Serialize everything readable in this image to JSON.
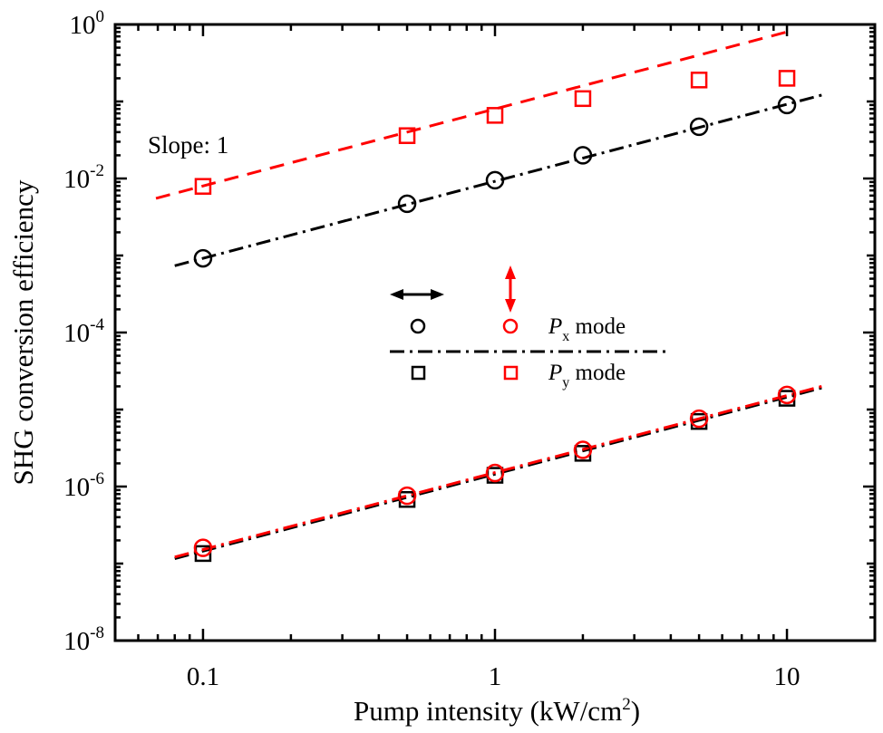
{
  "chart_data": {
    "type": "scatter",
    "title": "",
    "xlabel": "Pump intensity (kW/cm",
    "xlabel_sup": "2",
    "xlabel_end": ")",
    "ylabel": "SHG conversion efficiency",
    "xscale": "log",
    "yscale": "log",
    "xlim": [
      0.05,
      20
    ],
    "ylim": [
      1e-08,
      1
    ],
    "x_ticks": [
      {
        "v": 0.1,
        "label": "0.1"
      },
      {
        "v": 1,
        "label": "1"
      },
      {
        "v": 10,
        "label": "10"
      }
    ],
    "y_ticks": [
      {
        "v": 1,
        "base": "10",
        "exp": "0"
      },
      {
        "v": 0.01,
        "base": "10",
        "exp": "-2"
      },
      {
        "v": 0.0001,
        "base": "10",
        "exp": "-4"
      },
      {
        "v": 1e-06,
        "base": "10",
        "exp": "-6"
      },
      {
        "v": 1e-08,
        "base": "10",
        "exp": "-8"
      }
    ],
    "grid": false,
    "annotation": "Slope: 1",
    "series": [
      {
        "name": "Horizontal polarization, Px mode",
        "marker": "circle",
        "color": "#000000",
        "x": [
          0.1,
          0.5,
          1,
          2,
          5,
          10
        ],
        "y": [
          0.00092,
          0.0047,
          0.0095,
          0.02,
          0.047,
          0.09
        ]
      },
      {
        "name": "Vertical polarization, Py mode",
        "marker": "square",
        "color": "#ff0000",
        "x": [
          0.1,
          0.5,
          1,
          2,
          5,
          10
        ],
        "y": [
          0.0079,
          0.036,
          0.066,
          0.109,
          0.19,
          0.2
        ]
      },
      {
        "name": "Horizontal polarization, Py mode",
        "marker": "square",
        "color": "#000000",
        "x": [
          0.1,
          0.5,
          1,
          2,
          5,
          10
        ],
        "y": [
          1.35e-07,
          6.8e-07,
          1.4e-06,
          2.7e-06,
          7e-06,
          1.4e-05
        ]
      },
      {
        "name": "Vertical polarization, Px mode",
        "marker": "circle",
        "color": "#ff0000",
        "x": [
          0.1,
          0.5,
          1,
          2,
          5,
          10
        ],
        "y": [
          1.6e-07,
          7.6e-07,
          1.5e-06,
          3e-06,
          7.6e-06,
          1.55e-05
        ]
      }
    ],
    "fits": [
      {
        "name": "red-dashed-fit",
        "color": "#ff0000",
        "style": "dash",
        "coef": 0.08,
        "slope": 1,
        "x_range": [
          0.069,
          10
        ]
      },
      {
        "name": "black-dashdot-fit",
        "color": "#000000",
        "style": "dashdot",
        "coef": 0.0092,
        "slope": 1,
        "x_range": [
          0.08,
          13.4
        ]
      },
      {
        "name": "black-lower-dashdot-fit",
        "color": "#000000",
        "style": "dashdot",
        "coef": 1.45e-06,
        "slope": 1,
        "x_range": [
          0.08,
          13.5
        ]
      },
      {
        "name": "red-lower-dashdot-fit",
        "color": "#ff0000",
        "style": "dashdot",
        "coef": 1.52e-06,
        "slope": 1,
        "x_range": [
          0.08,
          13.5
        ]
      }
    ],
    "legend": {
      "placement": "center",
      "row1_label_base": "P",
      "row1_label_sub": "x",
      "row1_label_rest": " mode",
      "row2_label_base": "P",
      "row2_label_sub": "y",
      "row2_label_rest": " mode",
      "col1_color": "#000000",
      "col2_color": "#ff0000"
    }
  }
}
